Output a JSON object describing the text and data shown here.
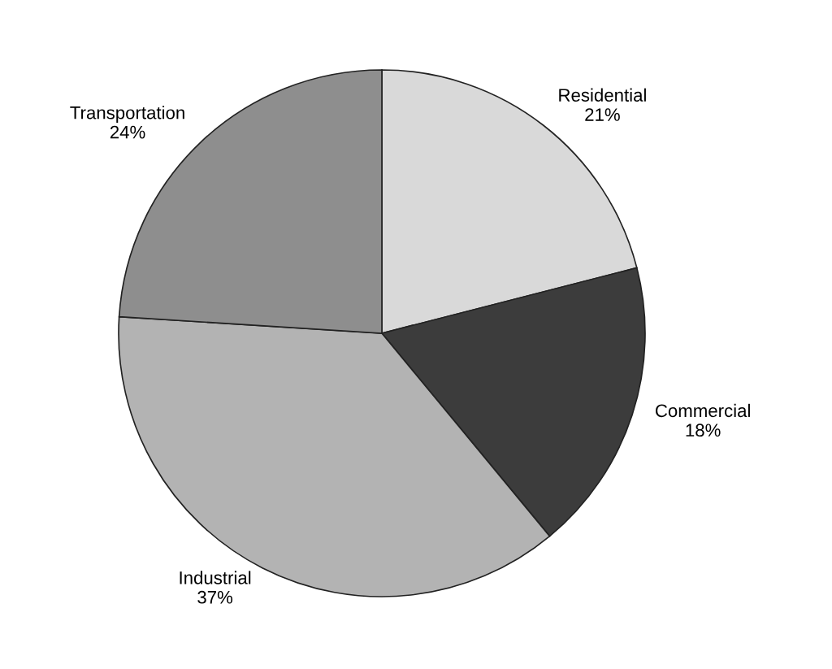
{
  "chart_data": {
    "type": "pie",
    "categories": [
      "Residential",
      "Commercial",
      "Industrial",
      "Transportation"
    ],
    "values": [
      21,
      18,
      37,
      24
    ],
    "value_labels": [
      "21%",
      "18%",
      "37%",
      "24%"
    ],
    "colors": [
      "#d9d9d9",
      "#3c3c3c",
      "#b3b3b3",
      "#8e8e8e"
    ],
    "legend": false
  }
}
